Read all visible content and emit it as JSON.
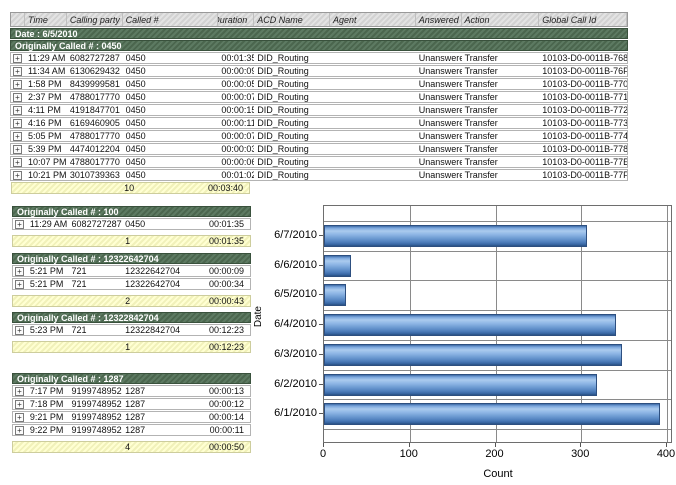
{
  "icons": {
    "expand": "+"
  },
  "table": {
    "columns": [
      "",
      "Time",
      "Calling party #",
      "Called #",
      "Duration",
      "ACD Name",
      "Agent",
      "Answered",
      "Action",
      "Global Call Id"
    ],
    "date_header": "Date : 6/5/2010",
    "top_group": {
      "header": "Originally Called # : 0450",
      "rows": [
        {
          "time": "11:29 AM",
          "calling": "6082727287",
          "called": "0450",
          "duration": "00:01:35",
          "acd": "DID_Routing",
          "agent": "",
          "answered": "Unanswered",
          "action": "Transfer",
          "global_id": "10103-D0-0011B-768"
        },
        {
          "time": "11:34 AM",
          "calling": "6130629432",
          "called": "0450",
          "duration": "00:00:09",
          "acd": "DID_Routing",
          "agent": "",
          "answered": "Unanswered",
          "action": "Transfer",
          "global_id": "10103-D0-0011B-76F"
        },
        {
          "time": "1:58 PM",
          "calling": "8439999581",
          "called": "0450",
          "duration": "00:00:05",
          "acd": "DID_Routing",
          "agent": "",
          "answered": "Unanswered",
          "action": "Transfer",
          "global_id": "10103-D0-0011B-770"
        },
        {
          "time": "2:37 PM",
          "calling": "4788017770",
          "called": "0450",
          "duration": "00:00:07",
          "acd": "DID_Routing",
          "agent": "",
          "answered": "Unanswered",
          "action": "Transfer",
          "global_id": "10103-D0-0011B-771"
        },
        {
          "time": "4:11 PM",
          "calling": "4191847701",
          "called": "0450",
          "duration": "00:00:15",
          "acd": "DID_Routing",
          "agent": "",
          "answered": "Unanswered",
          "action": "Transfer",
          "global_id": "10103-D0-0011B-772"
        },
        {
          "time": "4:16 PM",
          "calling": "6169460905",
          "called": "0450",
          "duration": "00:00:11",
          "acd": "DID_Routing",
          "agent": "",
          "answered": "Unanswered",
          "action": "Transfer",
          "global_id": "10103-D0-0011B-773"
        },
        {
          "time": "5:05 PM",
          "calling": "4788017770",
          "called": "0450",
          "duration": "00:00:07",
          "acd": "DID_Routing",
          "agent": "",
          "answered": "Unanswered",
          "action": "Transfer",
          "global_id": "10103-D0-0011B-774"
        },
        {
          "time": "5:39 PM",
          "calling": "4474012204",
          "called": "0450",
          "duration": "00:00:03",
          "acd": "DID_Routing",
          "agent": "",
          "answered": "Unanswered",
          "action": "Transfer",
          "global_id": "10103-D0-0011B-778"
        },
        {
          "time": "10:07 PM",
          "calling": "4788017770",
          "called": "0450",
          "duration": "00:00:06",
          "acd": "DID_Routing",
          "agent": "",
          "answered": "Unanswered",
          "action": "Transfer",
          "global_id": "10103-D0-0011B-77E"
        },
        {
          "time": "10:21 PM",
          "calling": "3010739363",
          "called": "0450",
          "duration": "00:01:02",
          "acd": "DID_Routing",
          "agent": "",
          "answered": "Unanswered",
          "action": "Transfer",
          "global_id": "10103-D0-0011B-77F"
        }
      ],
      "summary": {
        "count": "10",
        "duration": "00:03:40"
      }
    },
    "groups": [
      {
        "header": "Originally Called # : 100",
        "rows": [
          {
            "time": "11:29 AM",
            "calling": "6082727287",
            "called": "0450",
            "duration": "00:01:35"
          }
        ],
        "summary": {
          "count": "1",
          "duration": "00:01:35"
        }
      },
      {
        "header": "Originally Called # : 12322642704",
        "rows": [
          {
            "time": "5:21 PM",
            "calling": "721",
            "called": "12322642704",
            "duration": "00:00:09"
          },
          {
            "time": "5:21 PM",
            "calling": "721",
            "called": "12322642704",
            "duration": "00:00:34"
          }
        ],
        "summary": {
          "count": "2",
          "duration": "00:00:43"
        }
      },
      {
        "header": "Originally Called # : 12322842704",
        "rows": [
          {
            "time": "5:23 PM",
            "calling": "721",
            "called": "12322842704",
            "duration": "00:12:23"
          }
        ],
        "summary": {
          "count": "1",
          "duration": "00:12:23"
        }
      },
      {
        "header": "Originally Called # : 1287",
        "rows": [
          {
            "time": "7:17 PM",
            "calling": "9199748952",
            "called": "1287",
            "duration": "00:00:13"
          },
          {
            "time": "7:18 PM",
            "calling": "9199748952",
            "called": "1287",
            "duration": "00:00:12"
          },
          {
            "time": "9:21 PM",
            "calling": "9199748952",
            "called": "1287",
            "duration": "00:00:14"
          },
          {
            "time": "9:22 PM",
            "calling": "9199748952",
            "called": "1287",
            "duration": "00:00:11"
          }
        ],
        "summary": {
          "count": "4",
          "duration": "00:00:50"
        }
      }
    ]
  },
  "chart_data": {
    "type": "bar",
    "orientation": "horizontal",
    "categories": [
      "6/7/2010",
      "6/6/2010",
      "6/5/2010",
      "6/4/2010",
      "6/3/2010",
      "6/2/2010",
      "6/1/2010"
    ],
    "values": [
      307,
      32,
      26,
      340,
      348,
      318,
      392
    ],
    "title": "",
    "xlabel": "Count",
    "ylabel": "Date",
    "xlim": [
      0,
      400
    ],
    "xticks": [
      0,
      100,
      200,
      300,
      400
    ],
    "grid": true,
    "legend": false,
    "bar_color_light": "#abcbee",
    "bar_color_dark": "#2a5080",
    "grid_color": "#8a8a8a"
  }
}
